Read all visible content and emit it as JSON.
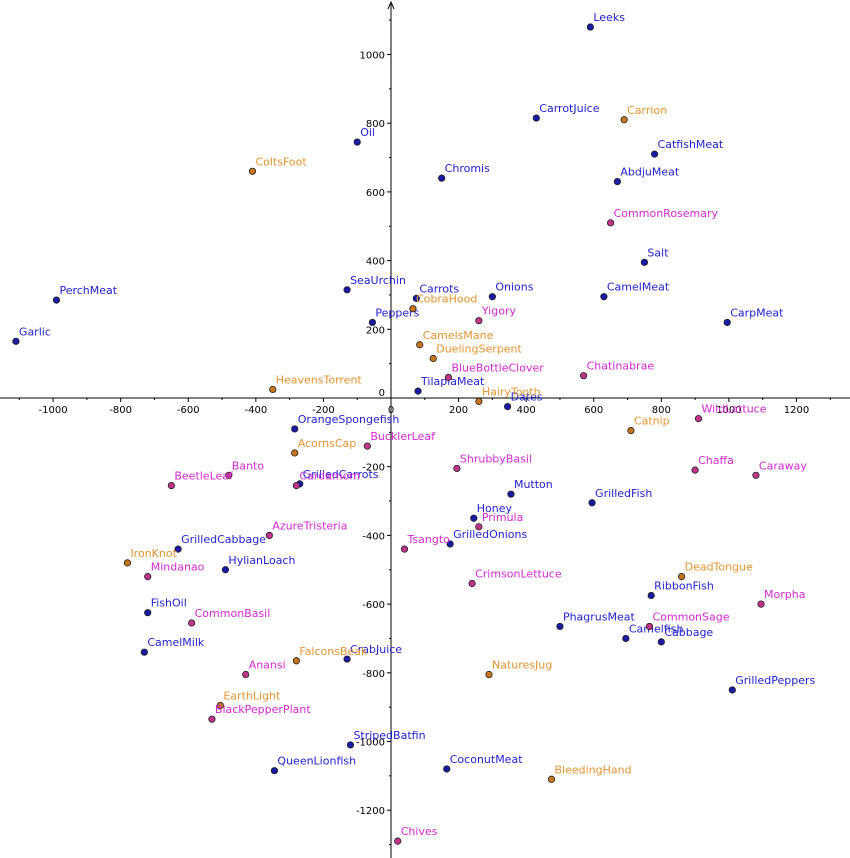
{
  "chart_data": {
    "type": "scatter",
    "title": "",
    "xlabel": "",
    "ylabel": "",
    "xlim": [
      -1180,
      1340
    ],
    "ylim": [
      -1360,
      1150
    ],
    "x_ticks": [
      -1000,
      -800,
      -600,
      -400,
      -200,
      0,
      200,
      400,
      600,
      800,
      1000,
      1200
    ],
    "x_tick_labels": [
      "-1000",
      "-800",
      "-600",
      "-400",
      "-200",
      "0",
      "200",
      "400",
      "600",
      "800",
      "1000",
      "1200"
    ],
    "y_ticks": [
      1000,
      800,
      600,
      400,
      200,
      0,
      -200,
      -400,
      -600,
      -800,
      -1000,
      -1200
    ],
    "y_tick_labels": [
      "1000",
      "800",
      "600",
      "400",
      "200",
      "0",
      "-200",
      "-400",
      "-600",
      "-800",
      "-1000",
      "-1200"
    ],
    "grid": false,
    "legend": "none",
    "colors": {
      "blue": "#1a1aa6",
      "orange": "#c8741a",
      "magenta": "#c2338a",
      "blue_label": "#1f1fd0",
      "orange_label": "#e39432",
      "magenta_label": "#d42ad2",
      "axis": "#000000"
    },
    "series": [
      {
        "color_key": "blue",
        "points": [
          {
            "label": "Leeks",
            "x": 590,
            "y": 1080
          },
          {
            "label": "CarrotJuice",
            "x": 430,
            "y": 815
          },
          {
            "label": "Oil",
            "x": -100,
            "y": 745
          },
          {
            "label": "CatfishMeat",
            "x": 780,
            "y": 710
          },
          {
            "label": "Chromis",
            "x": 150,
            "y": 640
          },
          {
            "label": "AbdjuMeat",
            "x": 670,
            "y": 630
          },
          {
            "label": "Salt",
            "x": 750,
            "y": 395
          },
          {
            "label": "PerchMeat",
            "x": -990,
            "y": 285
          },
          {
            "label": "SeaUrchin",
            "x": -130,
            "y": 315
          },
          {
            "label": "Carrots",
            "x": 75,
            "y": 290
          },
          {
            "label": "Onions",
            "x": 300,
            "y": 295
          },
          {
            "label": "CamelMeat",
            "x": 630,
            "y": 295
          },
          {
            "label": "CarpMeat",
            "x": 995,
            "y": 220
          },
          {
            "label": "Garlic",
            "x": -1110,
            "y": 165
          },
          {
            "label": "Peppers",
            "x": -55,
            "y": 220
          },
          {
            "label": "TilapiaMeat",
            "x": 80,
            "y": 20
          },
          {
            "label": "Dates",
            "x": 345,
            "y": -25
          },
          {
            "label": "OrangeSpongefish",
            "x": -285,
            "y": -90
          },
          {
            "label": "GrilledCarrots",
            "x": -270,
            "y": -250
          },
          {
            "label": "Mutton",
            "x": 355,
            "y": -280
          },
          {
            "label": "GrilledFish",
            "x": 595,
            "y": -305
          },
          {
            "label": "Honey",
            "x": 245,
            "y": -350
          },
          {
            "label": "GrilledCabbage",
            "x": -630,
            "y": -440
          },
          {
            "label": "GrilledOnions",
            "x": 175,
            "y": -425
          },
          {
            "label": "HylianLoach",
            "x": -490,
            "y": -500
          },
          {
            "label": "RibbonFish",
            "x": 770,
            "y": -575
          },
          {
            "label": "FishOil",
            "x": -720,
            "y": -625
          },
          {
            "label": "PhagrusMeat",
            "x": 500,
            "y": -665
          },
          {
            "label": "Camelfish",
            "x": 695,
            "y": -700
          },
          {
            "label": "Cabbage",
            "x": 800,
            "y": -710
          },
          {
            "label": "CamelMilk",
            "x": -730,
            "y": -740
          },
          {
            "label": "CrabJuice",
            "x": -130,
            "y": -760
          },
          {
            "label": "GrilledPeppers",
            "x": 1010,
            "y": -850
          },
          {
            "label": "StripedBatfin",
            "x": -120,
            "y": -1010
          },
          {
            "label": "QueenLionfish",
            "x": -345,
            "y": -1085
          },
          {
            "label": "CoconutMeat",
            "x": 165,
            "y": -1080
          }
        ]
      },
      {
        "color_key": "orange",
        "points": [
          {
            "label": "Carrion",
            "x": 690,
            "y": 810
          },
          {
            "label": "ColtsFoot",
            "x": -410,
            "y": 660
          },
          {
            "label": "CobraHood",
            "x": 65,
            "y": 260
          },
          {
            "label": "CamelsMane",
            "x": 85,
            "y": 155
          },
          {
            "label": "DuelingSerpent",
            "x": 125,
            "y": 115
          },
          {
            "label": "HeavensTorrent",
            "x": -350,
            "y": 25
          },
          {
            "label": "HairyTooth",
            "x": 260,
            "y": -10
          },
          {
            "label": "Catnip",
            "x": 710,
            "y": -95
          },
          {
            "label": "AcornsCap",
            "x": -285,
            "y": -160
          },
          {
            "label": "DeadTongue",
            "x": 860,
            "y": -520
          },
          {
            "label": "IronKnot",
            "x": -780,
            "y": -480
          },
          {
            "label": "FalconsBeak",
            "x": -280,
            "y": -765
          },
          {
            "label": "NaturesJug",
            "x": 290,
            "y": -805
          },
          {
            "label": "EarthLight",
            "x": -505,
            "y": -895
          },
          {
            "label": "BleedingHand",
            "x": 475,
            "y": -1110
          }
        ]
      },
      {
        "color_key": "magenta",
        "points": [
          {
            "label": "CommonRosemary",
            "x": 650,
            "y": 510
          },
          {
            "label": "Yigory",
            "x": 260,
            "y": 225
          },
          {
            "label": "BlueBottleClover",
            "x": 170,
            "y": 60
          },
          {
            "label": "Chatinabrae",
            "x": 570,
            "y": 65
          },
          {
            "label": "WildLattuce",
            "x": 910,
            "y": -60
          },
          {
            "label": "BucklerLeaf",
            "x": -70,
            "y": -140
          },
          {
            "label": "ShrubbyBasil",
            "x": 195,
            "y": -205
          },
          {
            "label": "Chaffa",
            "x": 900,
            "y": -210
          },
          {
            "label": "Caraway",
            "x": 1080,
            "y": -225
          },
          {
            "label": "Banto",
            "x": -480,
            "y": -225
          },
          {
            "label": "BeetleLeaf",
            "x": -650,
            "y": -255
          },
          {
            "label": "Cardamom",
            "x": -280,
            "y": -255
          },
          {
            "label": "Primula",
            "x": 260,
            "y": -375
          },
          {
            "label": "AzureTristeria",
            "x": -360,
            "y": -400
          },
          {
            "label": "Tsangto",
            "x": 40,
            "y": -440
          },
          {
            "label": "Mindanao",
            "x": -720,
            "y": -520
          },
          {
            "label": "CrimsonLettuce",
            "x": 240,
            "y": -540
          },
          {
            "label": "Morpha",
            "x": 1095,
            "y": -600
          },
          {
            "label": "CommonBasil",
            "x": -590,
            "y": -655
          },
          {
            "label": "CommonSage",
            "x": 765,
            "y": -665
          },
          {
            "label": "Anansi",
            "x": -430,
            "y": -805
          },
          {
            "label": "BlackPepperPlant",
            "x": -530,
            "y": -935
          },
          {
            "label": "Chives",
            "x": 20,
            "y": -1290
          }
        ]
      }
    ]
  }
}
